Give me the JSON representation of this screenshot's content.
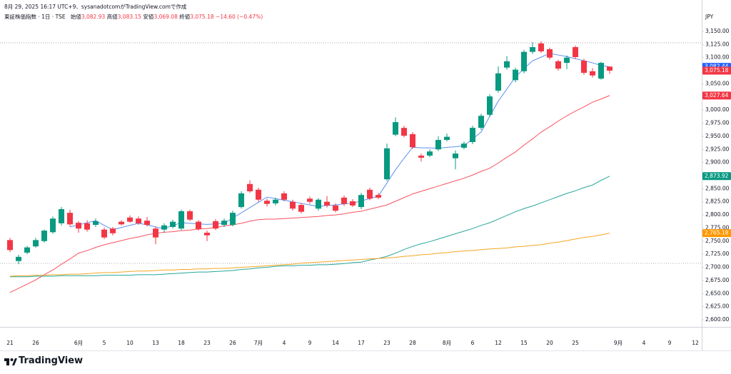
{
  "chart_data": {
    "type": "candlestick",
    "caption": "8月 29, 2025 16:17 UTC+9、sysanadotcomがTradingView.comで作成",
    "symbol": "東証株価指数 · 1日 · TSE",
    "ohlc_legend": [
      {
        "name": "始値",
        "value": "3,082.93"
      },
      {
        "name": "高値",
        "value": "3,083.15"
      },
      {
        "name": "安値",
        "value": "3,069.08"
      },
      {
        "name": "終値",
        "value": "3,075.18"
      }
    ],
    "change": "−14.60 (−0.47%)",
    "currency": "JPY",
    "brand": "TradingView",
    "up_color": "#089981",
    "down_color": "#f23645",
    "close_label": "3,075.18",
    "categories": [
      "21",
      null,
      null,
      "26",
      null,
      null,
      null,
      null,
      "6月",
      null,
      null,
      "5",
      null,
      null,
      "10",
      null,
      null,
      "13",
      null,
      null,
      "18",
      null,
      null,
      "23",
      null,
      null,
      "26",
      null,
      null,
      "7月",
      null,
      null,
      "4",
      null,
      null,
      "9",
      null,
      null,
      "14",
      null,
      null,
      "17",
      null,
      null,
      "23",
      null,
      null,
      "28",
      null,
      null,
      null,
      "8月",
      null,
      null,
      "6",
      null,
      null,
      "12",
      null,
      null,
      "15",
      null,
      null,
      "20",
      null,
      null,
      "25",
      null,
      null,
      null,
      null,
      "9月",
      null,
      null,
      "4",
      null,
      null,
      "9",
      null,
      null,
      "12"
    ],
    "open": [
      2752,
      2712,
      2728,
      2740,
      2750,
      2767,
      2784,
      2804,
      2785,
      2784,
      2781,
      2772,
      2774,
      2787,
      2795,
      2793,
      2789,
      2774,
      2772,
      2777,
      2774,
      2807,
      2787,
      2766,
      2788,
      2781,
      2781,
      2815,
      2859,
      2848,
      2827,
      2822,
      2841,
      2825,
      2819,
      2831,
      2812,
      2825,
      2818,
      2833,
      2826,
      2815,
      2848,
      2838,
      2868,
      2953,
      2966,
      2954,
      2913,
      2913,
      2925,
      2943,
      2908,
      2928,
      2939,
      2966,
      2991,
      3037,
      3081,
      3057,
      3074,
      3111,
      3127,
      3116,
      3093,
      3090,
      3120,
      3094,
      3074,
      3060,
      3082.93,
      null,
      null,
      null,
      null,
      null,
      null,
      null,
      null,
      null,
      null
    ],
    "high": [
      2756,
      2724,
      2741,
      2756,
      2772,
      2797,
      2815,
      2810,
      2788,
      2790,
      2793,
      2776,
      2777,
      2790,
      2799,
      2797,
      2796,
      2778,
      2784,
      2791,
      2810,
      2810,
      2790,
      2770,
      2792,
      2793,
      2808,
      2845,
      2866,
      2852,
      2831,
      2833,
      2845,
      2829,
      2823,
      2835,
      2832,
      2836,
      2822,
      2837,
      2830,
      2842,
      2852,
      2842,
      2936,
      2986,
      2970,
      2958,
      2917,
      2925,
      2950,
      2955,
      2923,
      2940,
      2970,
      2993,
      3030,
      3083,
      3103,
      3081,
      3115,
      3129,
      3131,
      3119,
      3096,
      3104,
      3123,
      3098,
      3080,
      3092,
      3083.15,
      null,
      null,
      null,
      null,
      null,
      null,
      null,
      null,
      null,
      null
    ],
    "low": [
      2729,
      2706,
      2725,
      2737,
      2747,
      2764,
      2780,
      2778,
      2766,
      2768,
      2777,
      2754,
      2761,
      2780,
      2785,
      2781,
      2778,
      2744,
      2766,
      2774,
      2771,
      2788,
      2770,
      2750,
      2771,
      2777,
      2778,
      2812,
      2842,
      2825,
      2816,
      2818,
      2826,
      2808,
      2803,
      2821,
      2808,
      2814,
      2805,
      2817,
      2815,
      2811,
      2828,
      2830,
      2865,
      2950,
      2948,
      2926,
      2902,
      2910,
      2922,
      2940,
      2887,
      2925,
      2935,
      2962,
      2987,
      3033,
      3077,
      3053,
      3070,
      3107,
      3109,
      3096,
      3075,
      3078,
      3097,
      3067,
      3062,
      3058,
      3069.08,
      null,
      null,
      null,
      null,
      null,
      null,
      null,
      null,
      null,
      null
    ],
    "close": [
      2733,
      2720,
      2738,
      2752,
      2770,
      2793,
      2811,
      2782,
      2774,
      2772,
      2788,
      2757,
      2765,
      2782,
      2787,
      2784,
      2781,
      2757,
      2780,
      2787,
      2807,
      2791,
      2773,
      2761,
      2774,
      2789,
      2804,
      2841,
      2845,
      2829,
      2821,
      2829,
      2829,
      2812,
      2806,
      2825,
      2829,
      2818,
      2808,
      2821,
      2818,
      2838,
      2831,
      2833,
      2927,
      2977,
      2951,
      2929,
      2909,
      2921,
      2943,
      2949,
      2917,
      2936,
      2966,
      2989,
      3026,
      3070,
      3093,
      3077,
      3111,
      3120,
      3112,
      3100,
      3079,
      3100,
      3101,
      3071,
      3066,
      3090,
      3075.18,
      null,
      null,
      null,
      null,
      null,
      null,
      null,
      null,
      null,
      null
    ],
    "series": [
      {
        "color": "#5b8ff0",
        "label_color": "#2962ff",
        "last_value_label": "3,082.44",
        "values": [
          null,
          null,
          null,
          null,
          null,
          null,
          null,
          2777,
          2781,
          2785,
          2789,
          2780,
          2772,
          2776,
          2780,
          2784,
          2781,
          2777,
          2774,
          2780,
          2785,
          2784,
          2783,
          2782,
          2783,
          2784,
          2794,
          2804,
          2814,
          2824,
          2834,
          2831,
          2828,
          2825,
          2822,
          2819,
          2816,
          2818,
          2819,
          2821,
          2822,
          2827,
          2831,
          2836,
          2861,
          2886,
          2908,
          2929,
          2928,
          2928,
          2927,
          2929,
          2930,
          2932,
          2945,
          2958,
          2988,
          3017,
          3040,
          3063,
          3079,
          3094,
          3101,
          3108,
          3105,
          3102,
          3098,
          3094,
          3090,
          3085,
          3082.44,
          null,
          null,
          null,
          null,
          null,
          null,
          null,
          null,
          null,
          null
        ]
      },
      {
        "color": "#f7525f",
        "label_color": "#f23645",
        "last_value_label": "3,027.64",
        "values": [
          2652,
          2660,
          2668,
          2676,
          2686,
          2695,
          2706,
          2716,
          2727,
          2732,
          2738,
          2743,
          2747,
          2751,
          2755,
          2758,
          2762,
          2765,
          2767,
          2768,
          2770,
          2771,
          2773,
          2774,
          2776,
          2779,
          2781,
          2784,
          2788,
          2791,
          2792,
          2792,
          2793,
          2794,
          2795,
          2796,
          2797,
          2799,
          2800,
          2802,
          2805,
          2807,
          2811,
          2815,
          2819,
          2826,
          2833,
          2840,
          2845,
          2850,
          2855,
          2860,
          2865,
          2870,
          2876,
          2883,
          2889,
          2899,
          2910,
          2920,
          2933,
          2945,
          2958,
          2968,
          2979,
          2989,
          2998,
          3006,
          3015,
          3021,
          3027.64,
          null,
          null,
          null,
          null,
          null,
          null,
          null,
          null,
          null,
          null
        ]
      },
      {
        "color": "#26a69a",
        "label_color": "#089981",
        "last_value_label": "2,873.92",
        "values": [
          2682,
          2682,
          2682,
          2683,
          2683,
          2683,
          2684,
          2684,
          2684,
          2684,
          2684,
          2685,
          2685,
          2685,
          2685,
          2686,
          2686,
          2686,
          2687,
          2688,
          2689,
          2690,
          2691,
          2691,
          2692,
          2693,
          2694,
          2696,
          2697,
          2699,
          2700,
          2702,
          2703,
          2703,
          2704,
          2704,
          2705,
          2705,
          2706,
          2707,
          2709,
          2710,
          2714,
          2717,
          2721,
          2727,
          2734,
          2740,
          2745,
          2749,
          2754,
          2759,
          2764,
          2769,
          2774,
          2780,
          2785,
          2792,
          2799,
          2806,
          2812,
          2817,
          2823,
          2829,
          2835,
          2841,
          2846,
          2852,
          2857,
          2866,
          2873.92,
          null,
          null,
          null,
          null,
          null,
          null,
          null,
          null,
          null,
          null
        ]
      },
      {
        "color": "#f5a623",
        "label_color": "#ff9800",
        "last_value_label": "2,765.18",
        "values": [
          2683,
          2684,
          2684,
          2685,
          2685,
          2686,
          2686,
          2687,
          2687,
          2688,
          2689,
          2690,
          2690,
          2691,
          2692,
          2693,
          2693,
          2694,
          2695,
          2695,
          2696,
          2696,
          2697,
          2697,
          2698,
          2698,
          2699,
          2700,
          2701,
          2702,
          2703,
          2704,
          2705,
          2706,
          2708,
          2709,
          2710,
          2711,
          2712,
          2713,
          2714,
          2715,
          2716,
          2717,
          2718,
          2719,
          2721,
          2722,
          2724,
          2725,
          2727,
          2728,
          2730,
          2731,
          2732,
          2734,
          2735,
          2736,
          2737,
          2739,
          2740,
          2742,
          2743,
          2746,
          2748,
          2751,
          2754,
          2757,
          2759,
          2762,
          2765.18,
          null,
          null,
          null,
          null,
          null,
          null,
          null,
          null,
          null,
          null
        ]
      }
    ],
    "dotted_lines": [
      3128.3,
      2707.6
    ],
    "xlim": [
      -1.17,
      80.75
    ],
    "ylim": [
      2586.4,
      3209.9
    ],
    "yticks": [
      {
        "value": 2600,
        "label": "2,600.00"
      },
      {
        "value": 2625,
        "label": "2,625.00"
      },
      {
        "value": 2650,
        "label": "2,650.00"
      },
      {
        "value": 2675,
        "label": "2,675.00"
      },
      {
        "value": 2700,
        "label": "2,700.00"
      },
      {
        "value": 2725,
        "label": "2,725.00"
      },
      {
        "value": 2750,
        "label": "2,750.00"
      },
      {
        "value": 2775,
        "label": "2,775.00"
      },
      {
        "value": 2800,
        "label": "2,800.00"
      },
      {
        "value": 2825,
        "label": "2,825.00"
      },
      {
        "value": 2850,
        "label": "2,850.00"
      },
      {
        "value": 2875,
        "label": "2,875.00"
      },
      {
        "value": 2900,
        "label": "2,900.00"
      },
      {
        "value": 2925,
        "label": "2,925.00"
      },
      {
        "value": 2950,
        "label": "2,950.00"
      },
      {
        "value": 2975,
        "label": "2,975.00"
      },
      {
        "value": 3000,
        "label": "3,000.00"
      },
      {
        "value": 3025,
        "label": "3,025.00"
      },
      {
        "value": 3050,
        "label": "3,050.00"
      },
      {
        "value": 3075,
        "label": "3,075.00"
      },
      {
        "value": 3100,
        "label": "3,100.00"
      },
      {
        "value": 3125,
        "label": "3,125.00"
      },
      {
        "value": 3150,
        "label": "3,150.00"
      }
    ],
    "grid": false
  }
}
